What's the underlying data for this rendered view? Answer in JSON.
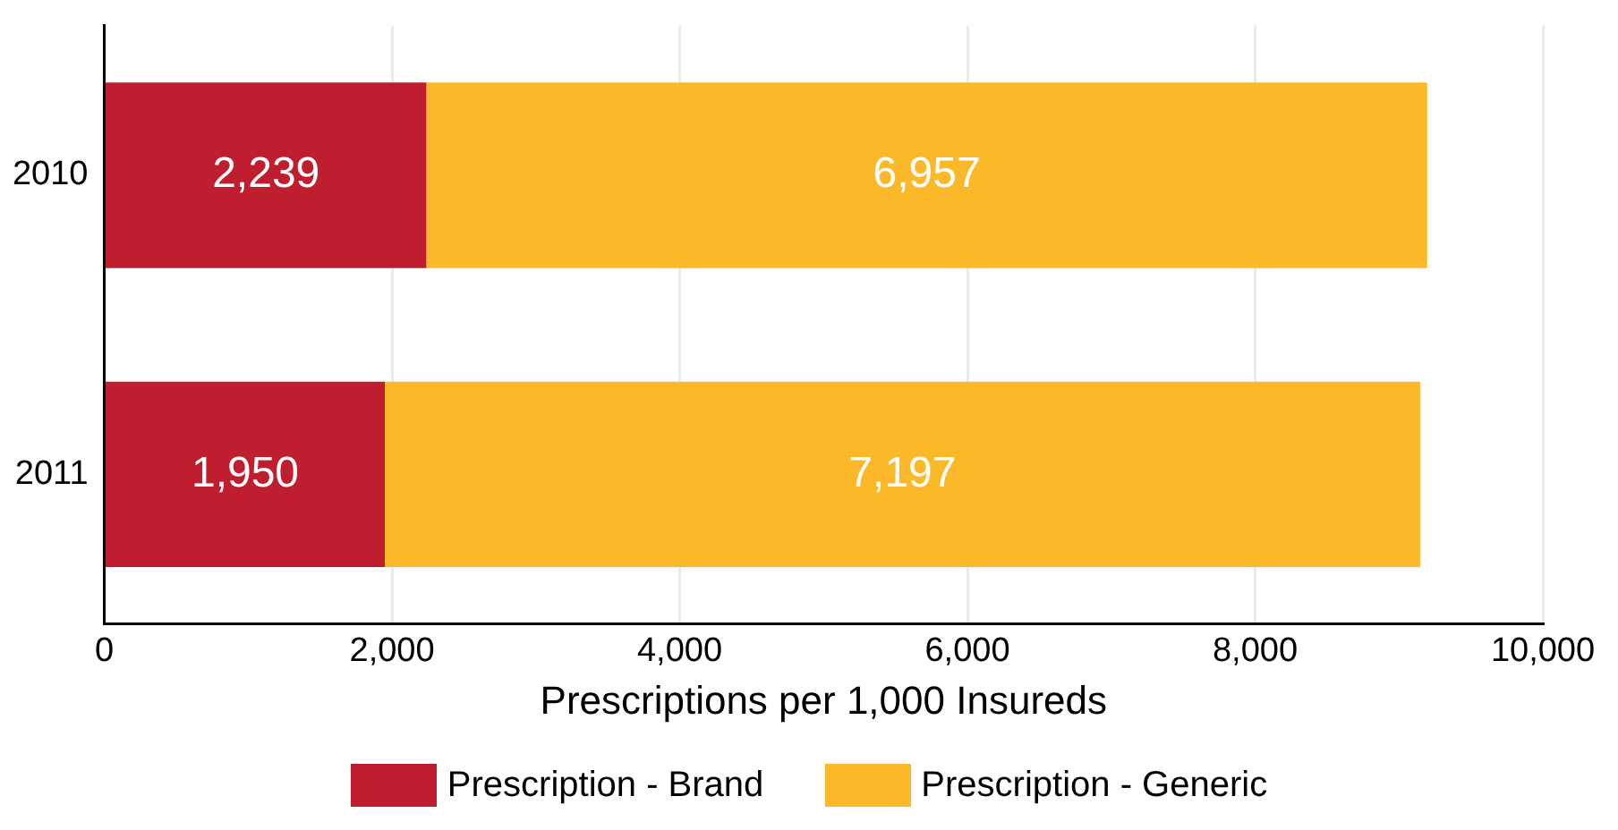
{
  "chart_data": {
    "type": "bar",
    "orientation": "horizontal",
    "stacked": true,
    "xlabel": "Prescriptions per 1,000 Insureds",
    "categories": [
      "2010",
      "2011"
    ],
    "series": [
      {
        "name": "Prescription - Brand",
        "color": "#be1e2d",
        "values": [
          2239,
          1950
        ],
        "value_labels": [
          "2,239",
          "1,950"
        ]
      },
      {
        "name": "Prescription - Generic",
        "color": "#fbb829",
        "values": [
          6957,
          7197
        ],
        "value_labels": [
          "6,957",
          "7,197"
        ]
      }
    ],
    "xlim": [
      0,
      10000
    ],
    "xticks": [
      {
        "value": 0,
        "label": "0"
      },
      {
        "value": 2000,
        "label": "2,000"
      },
      {
        "value": 4000,
        "label": "4,000"
      },
      {
        "value": 6000,
        "label": "6,000"
      },
      {
        "value": 8000,
        "label": "8,000"
      },
      {
        "value": 10000,
        "label": "10,000"
      }
    ],
    "grid": "x",
    "legend": "bottom"
  }
}
